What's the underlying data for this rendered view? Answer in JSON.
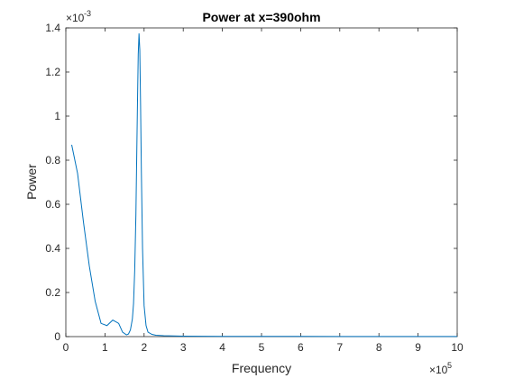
{
  "chart_data": {
    "type": "line",
    "title": "Power at x=390ohm",
    "xlabel": "Frequency",
    "ylabel": "Power",
    "x_multiplier": {
      "base": "×10",
      "exponent": "5"
    },
    "y_multiplier": {
      "base": "×10",
      "exponent": "-3"
    },
    "xlim": [
      0,
      10
    ],
    "ylim": [
      0,
      1.4
    ],
    "x_ticks": [
      0,
      1,
      2,
      3,
      4,
      5,
      6,
      7,
      8,
      9,
      10
    ],
    "x_tick_labels": [
      "0",
      "1",
      "2",
      "3",
      "4",
      "5",
      "6",
      "7",
      "8",
      "9",
      "10"
    ],
    "y_ticks": [
      0,
      0.2,
      0.4,
      0.6,
      0.8,
      1.0,
      1.2,
      1.4
    ],
    "y_tick_labels": [
      "0",
      "0.2",
      "0.4",
      "0.6",
      "0.8",
      "1",
      "1.2",
      "1.4"
    ],
    "grid": false,
    "series": [
      {
        "color": "#0072BD",
        "x": [
          0.15,
          0.3,
          0.45,
          0.6,
          0.75,
          0.9,
          1.05,
          1.2,
          1.35,
          1.45,
          1.55,
          1.6,
          1.65,
          1.7,
          1.73,
          1.76,
          1.79,
          1.81,
          1.83,
          1.85,
          1.87,
          1.89,
          1.91,
          1.93,
          1.96,
          2.0,
          2.05,
          2.1,
          2.2,
          2.3,
          2.5,
          3.0,
          4.0,
          5.0,
          6.0,
          7.0,
          8.0,
          9.0,
          10.0
        ],
        "y": [
          0.87,
          0.74,
          0.52,
          0.32,
          0.16,
          0.06,
          0.05,
          0.075,
          0.06,
          0.02,
          0.008,
          0.012,
          0.03,
          0.08,
          0.15,
          0.3,
          0.55,
          0.8,
          1.05,
          1.28,
          1.375,
          1.3,
          1.05,
          0.75,
          0.4,
          0.14,
          0.05,
          0.02,
          0.01,
          0.006,
          0.004,
          0.002,
          0.001,
          0.001,
          0.0008,
          0.0006,
          0.0005,
          0.0004,
          0.0004
        ]
      }
    ]
  }
}
